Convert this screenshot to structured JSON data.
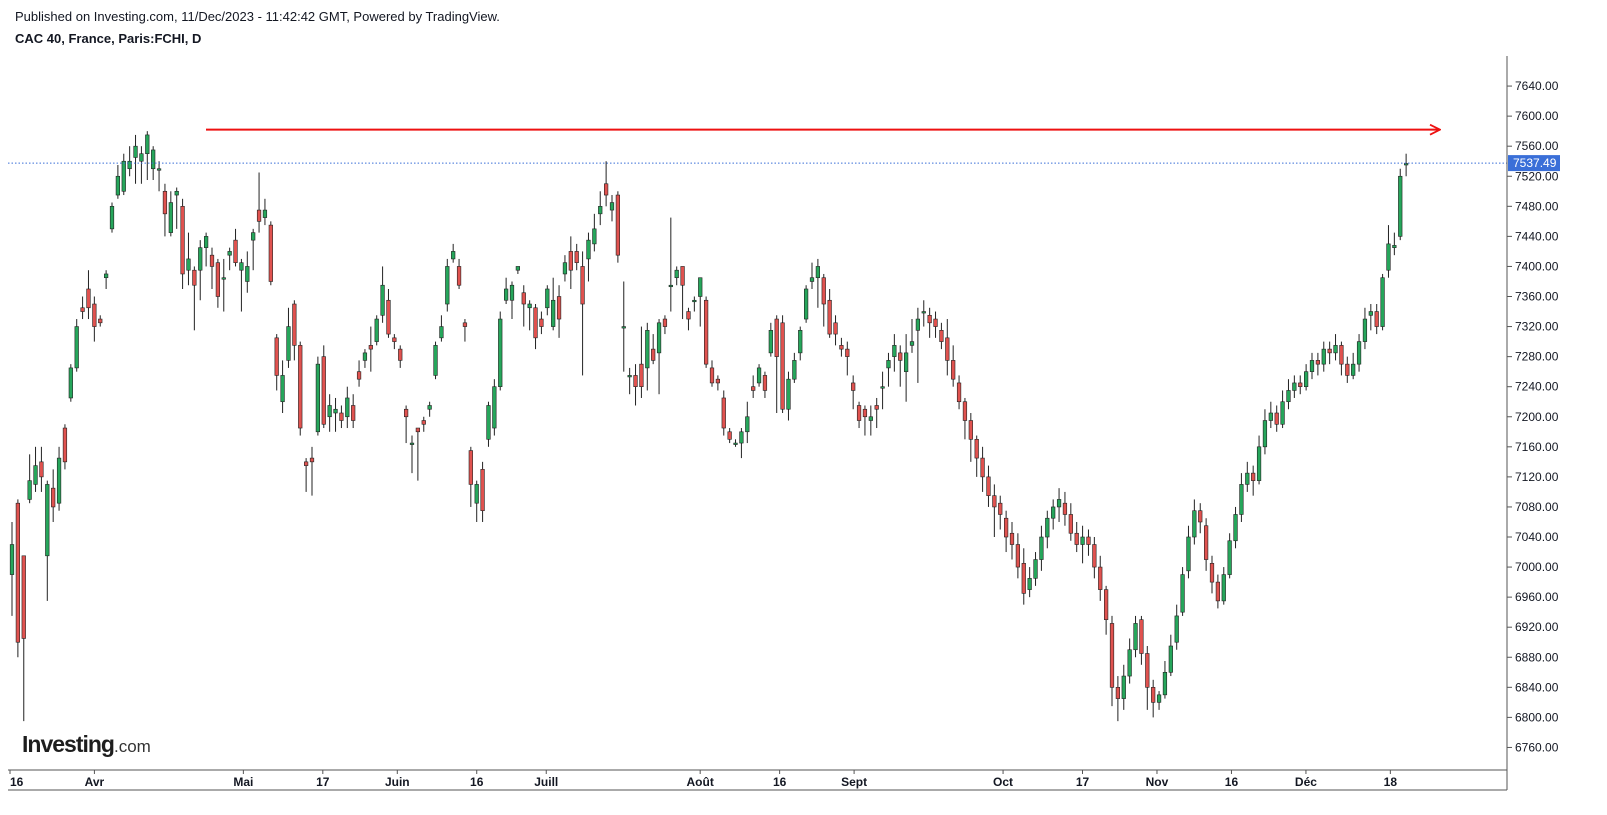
{
  "header": {
    "published": "Published on Investing.com, 11/Dec/2023 - 11:42:42 GMT, Powered by TradingView.",
    "symbol": "CAC 40, France, Paris:FCHI, D"
  },
  "logo": {
    "main": "Investing",
    "suffix": ".com"
  },
  "colors": {
    "up": "#26a65b",
    "down": "#e0524f",
    "wick": "#222222",
    "resistance": "#ee1111",
    "price_label": "#3a6fd8",
    "price_line": "#3a6fd8"
  },
  "chart_data": {
    "type": "candlestick",
    "ylim": [
      6730,
      7680
    ],
    "x_range_days": [
      0,
      288
    ],
    "yticks": [
      7640,
      7600,
      7560,
      7520,
      7480,
      7440,
      7400,
      7360,
      7320,
      7280,
      7240,
      7200,
      7160,
      7120,
      7080,
      7040,
      7000,
      6960,
      6920,
      6880,
      6840,
      6800,
      6760
    ],
    "ytick_labels": [
      "7640.00",
      "7600.00",
      "7560.00",
      "7520.00",
      "7480.00",
      "7440.00",
      "7400.00",
      "7360.00",
      "7320.00",
      "7280.00",
      "7240.00",
      "7200.00",
      "7160.00",
      "7120.00",
      "7080.00",
      "7040.00",
      "7000.00",
      "6960.00",
      "6920.00",
      "6880.00",
      "6840.00",
      "6800.00",
      "6760.00"
    ],
    "xticks": [
      {
        "day": 0,
        "label": "16"
      },
      {
        "day": 17,
        "label": "Avr"
      },
      {
        "day": 47,
        "label": "Mai"
      },
      {
        "day": 63,
        "label": "17"
      },
      {
        "day": 78,
        "label": "Juin"
      },
      {
        "day": 94,
        "label": "16"
      },
      {
        "day": 108,
        "label": "Juill"
      },
      {
        "day": 139,
        "label": "Août"
      },
      {
        "day": 155,
        "label": "16"
      },
      {
        "day": 170,
        "label": "Sept"
      },
      {
        "day": 200,
        "label": "Oct"
      },
      {
        "day": 216,
        "label": "17"
      },
      {
        "day": 231,
        "label": "Nov"
      },
      {
        "day": 246,
        "label": "16"
      },
      {
        "day": 261,
        "label": "Déc"
      },
      {
        "day": 278,
        "label": "18"
      }
    ],
    "last_price": 7537.49,
    "last_price_label": "7537.49",
    "resistance": {
      "value": 7582,
      "from_day": 36,
      "to_day": 275
    },
    "candles": [
      [
        6990,
        7030,
        6935,
        7060
      ],
      [
        7085,
        6900,
        6880,
        7090
      ],
      [
        7015,
        6905,
        6795,
        7015
      ],
      [
        7090,
        7115,
        7085,
        7150
      ],
      [
        7110,
        7135,
        7100,
        7160
      ],
      [
        7140,
        7120,
        7100,
        7160
      ],
      [
        7015,
        7110,
        6955,
        7115
      ],
      [
        7105,
        7080,
        7060,
        7130
      ],
      [
        7085,
        7145,
        7075,
        7160
      ],
      [
        7185,
        7140,
        7130,
        7190
      ],
      [
        7225,
        7265,
        7220,
        7270
      ],
      [
        7265,
        7320,
        7260,
        7330
      ],
      [
        7345,
        7340,
        7330,
        7360
      ],
      [
        7370,
        7345,
        7330,
        7395
      ],
      [
        7350,
        7320,
        7300,
        7360
      ],
      [
        7330,
        7325,
        7320,
        7335
      ],
      [
        7385,
        7390,
        7370,
        7395
      ],
      [
        7450,
        7480,
        7445,
        7485
      ],
      [
        7495,
        7520,
        7490,
        7535
      ],
      [
        7500,
        7540,
        7495,
        7550
      ],
      [
        7530,
        7540,
        7520,
        7560
      ],
      [
        7545,
        7560,
        7510,
        7575
      ],
      [
        7540,
        7550,
        7510,
        7560
      ],
      [
        7550,
        7575,
        7515,
        7580
      ],
      [
        7530,
        7555,
        7515,
        7560
      ],
      [
        7530,
        7530,
        7500,
        7540
      ],
      [
        7500,
        7470,
        7440,
        7510
      ],
      [
        7445,
        7485,
        7440,
        7500
      ],
      [
        7495,
        7500,
        7450,
        7505
      ],
      [
        7480,
        7390,
        7370,
        7490
      ],
      [
        7395,
        7410,
        7375,
        7445
      ],
      [
        7395,
        7375,
        7315,
        7400
      ],
      [
        7395,
        7425,
        7355,
        7435
      ],
      [
        7425,
        7440,
        7400,
        7445
      ],
      [
        7415,
        7400,
        7370,
        7425
      ],
      [
        7405,
        7360,
        7345,
        7410
      ],
      [
        7385,
        7385,
        7340,
        7410
      ],
      [
        7415,
        7420,
        7395,
        7425
      ],
      [
        7435,
        7405,
        7400,
        7450
      ],
      [
        7395,
        7405,
        7340,
        7410
      ],
      [
        7380,
        7400,
        7365,
        7420
      ],
      [
        7435,
        7445,
        7395,
        7450
      ],
      [
        7475,
        7460,
        7445,
        7525
      ],
      [
        7465,
        7475,
        7455,
        7490
      ],
      [
        7455,
        7380,
        7375,
        7460
      ],
      [
        7305,
        7255,
        7235,
        7310
      ],
      [
        7220,
        7255,
        7205,
        7275
      ],
      [
        7275,
        7320,
        7265,
        7345
      ],
      [
        7350,
        7295,
        7275,
        7355
      ],
      [
        7295,
        7185,
        7175,
        7300
      ],
      [
        7140,
        7135,
        7100,
        7145
      ],
      [
        7145,
        7140,
        7095,
        7160
      ],
      [
        7180,
        7270,
        7175,
        7280
      ],
      [
        7280,
        7190,
        7185,
        7295
      ],
      [
        7200,
        7215,
        7180,
        7230
      ],
      [
        7205,
        7210,
        7180,
        7225
      ],
      [
        7205,
        7195,
        7185,
        7215
      ],
      [
        7200,
        7225,
        7185,
        7240
      ],
      [
        7215,
        7195,
        7185,
        7230
      ],
      [
        7260,
        7250,
        7240,
        7275
      ],
      [
        7275,
        7285,
        7265,
        7290
      ],
      [
        7295,
        7290,
        7260,
        7320
      ],
      [
        7300,
        7330,
        7295,
        7335
      ],
      [
        7335,
        7375,
        7325,
        7400
      ],
      [
        7355,
        7310,
        7305,
        7370
      ],
      [
        7305,
        7300,
        7290,
        7310
      ],
      [
        7290,
        7275,
        7265,
        7295
      ],
      [
        7210,
        7200,
        7165,
        7215
      ],
      [
        7165,
        7165,
        7125,
        7175
      ],
      [
        7185,
        7180,
        7115,
        7185
      ],
      [
        7195,
        7190,
        7180,
        7200
      ],
      [
        7210,
        7215,
        7200,
        7220
      ],
      [
        7255,
        7295,
        7250,
        7300
      ],
      [
        7305,
        7320,
        7300,
        7335
      ],
      [
        7350,
        7400,
        7340,
        7410
      ],
      [
        7410,
        7420,
        7405,
        7430
      ],
      [
        7400,
        7375,
        7370,
        7410
      ],
      [
        7325,
        7320,
        7300,
        7330
      ],
      [
        7155,
        7110,
        7080,
        7160
      ],
      [
        7085,
        7110,
        7060,
        7115
      ],
      [
        7130,
        7075,
        7060,
        7140
      ],
      [
        7170,
        7215,
        7160,
        7220
      ],
      [
        7185,
        7240,
        7175,
        7250
      ],
      [
        7240,
        7330,
        7235,
        7340
      ],
      [
        7355,
        7370,
        7350,
        7385
      ],
      [
        7355,
        7375,
        7330,
        7380
      ],
      [
        7395,
        7400,
        7390,
        7400
      ],
      [
        7365,
        7350,
        7320,
        7375
      ],
      [
        7345,
        7350,
        7315,
        7355
      ],
      [
        7345,
        7305,
        7290,
        7350
      ],
      [
        7330,
        7320,
        7310,
        7340
      ],
      [
        7345,
        7370,
        7335,
        7375
      ],
      [
        7320,
        7355,
        7315,
        7385
      ],
      [
        7360,
        7330,
        7305,
        7375
      ],
      [
        7390,
        7405,
        7380,
        7415
      ],
      [
        7420,
        7395,
        7370,
        7440
      ],
      [
        7420,
        7405,
        7395,
        7430
      ],
      [
        7400,
        7350,
        7255,
        7420
      ],
      [
        7410,
        7435,
        7380,
        7445
      ],
      [
        7430,
        7450,
        7420,
        7470
      ],
      [
        7470,
        7480,
        7455,
        7500
      ],
      [
        7510,
        7495,
        7480,
        7540
      ],
      [
        7475,
        7485,
        7460,
        7495
      ],
      [
        7495,
        7415,
        7405,
        7500
      ],
      [
        7320,
        7320,
        7260,
        7380
      ],
      [
        7255,
        7255,
        7230,
        7265
      ],
      [
        7255,
        7240,
        7215,
        7270
      ],
      [
        7270,
        7240,
        7225,
        7320
      ],
      [
        7265,
        7315,
        7235,
        7325
      ],
      [
        7290,
        7275,
        7270,
        7310
      ],
      [
        7285,
        7325,
        7230,
        7330
      ],
      [
        7330,
        7320,
        7310,
        7335
      ],
      [
        7375,
        7375,
        7340,
        7465
      ],
      [
        7385,
        7395,
        7375,
        7400
      ],
      [
        7400,
        7375,
        7330,
        7400
      ],
      [
        7340,
        7330,
        7315,
        7345
      ],
      [
        7355,
        7355,
        7340,
        7360
      ],
      [
        7360,
        7385,
        7320,
        7385
      ],
      [
        7355,
        7270,
        7265,
        7360
      ],
      [
        7265,
        7245,
        7240,
        7275
      ],
      [
        7250,
        7245,
        7235,
        7255
      ],
      [
        7225,
        7185,
        7175,
        7235
      ],
      [
        7180,
        7170,
        7165,
        7185
      ],
      [
        7165,
        7165,
        7160,
        7170
      ],
      [
        7165,
        7180,
        7145,
        7185
      ],
      [
        7180,
        7200,
        7165,
        7220
      ],
      [
        7240,
        7235,
        7225,
        7255
      ],
      [
        7245,
        7265,
        7240,
        7270
      ],
      [
        7255,
        7235,
        7225,
        7260
      ],
      [
        7285,
        7315,
        7280,
        7325
      ],
      [
        7330,
        7280,
        7205,
        7335
      ],
      [
        7325,
        7210,
        7205,
        7335
      ],
      [
        7210,
        7250,
        7195,
        7260
      ],
      [
        7250,
        7275,
        7245,
        7285
      ],
      [
        7285,
        7315,
        7275,
        7320
      ],
      [
        7330,
        7370,
        7325,
        7375
      ],
      [
        7380,
        7385,
        7370,
        7405
      ],
      [
        7385,
        7400,
        7345,
        7410
      ],
      [
        7385,
        7350,
        7320,
        7390
      ],
      [
        7355,
        7310,
        7305,
        7370
      ],
      [
        7325,
        7310,
        7295,
        7335
      ],
      [
        7295,
        7290,
        7280,
        7305
      ],
      [
        7290,
        7280,
        7255,
        7300
      ],
      [
        7245,
        7235,
        7210,
        7255
      ],
      [
        7215,
        7195,
        7185,
        7220
      ],
      [
        7210,
        7200,
        7175,
        7215
      ],
      [
        7195,
        7200,
        7175,
        7215
      ],
      [
        7215,
        7210,
        7185,
        7225
      ],
      [
        7240,
        7240,
        7210,
        7260
      ],
      [
        7265,
        7275,
        7240,
        7285
      ],
      [
        7280,
        7295,
        7260,
        7310
      ],
      [
        7285,
        7275,
        7240,
        7295
      ],
      [
        7260,
        7285,
        7220,
        7310
      ],
      [
        7295,
        7300,
        7285,
        7330
      ],
      [
        7315,
        7330,
        7245,
        7345
      ],
      [
        7340,
        7340,
        7320,
        7355
      ],
      [
        7335,
        7325,
        7305,
        7345
      ],
      [
        7330,
        7320,
        7305,
        7340
      ],
      [
        7315,
        7300,
        7290,
        7325
      ],
      [
        7305,
        7275,
        7255,
        7330
      ],
      [
        7275,
        7250,
        7240,
        7295
      ],
      [
        7245,
        7220,
        7210,
        7255
      ],
      [
        7220,
        7195,
        7170,
        7225
      ],
      [
        7195,
        7170,
        7140,
        7205
      ],
      [
        7170,
        7145,
        7120,
        7175
      ],
      [
        7145,
        7120,
        7100,
        7160
      ],
      [
        7120,
        7095,
        7080,
        7135
      ],
      [
        7095,
        7080,
        7040,
        7110
      ],
      [
        7085,
        7070,
        7050,
        7095
      ],
      [
        7065,
        7040,
        7020,
        7075
      ],
      [
        7045,
        7030,
        7010,
        7060
      ],
      [
        7030,
        7000,
        6985,
        7045
      ],
      [
        7005,
        6965,
        6950,
        7025
      ],
      [
        6970,
        6985,
        6960,
        7000
      ],
      [
        6985,
        7010,
        6975,
        7020
      ],
      [
        7010,
        7040,
        6995,
        7055
      ],
      [
        7040,
        7065,
        7025,
        7075
      ],
      [
        7065,
        7080,
        7050,
        7090
      ],
      [
        7080,
        7090,
        7060,
        7105
      ],
      [
        7085,
        7070,
        7055,
        7100
      ],
      [
        7070,
        7045,
        7035,
        7085
      ],
      [
        7045,
        7030,
        7020,
        7060
      ],
      [
        7030,
        7040,
        7005,
        7055
      ],
      [
        7040,
        7030,
        7015,
        7050
      ],
      [
        7030,
        7000,
        6985,
        7040
      ],
      [
        7000,
        6970,
        6955,
        7015
      ],
      [
        6970,
        6930,
        6910,
        6975
      ],
      [
        6925,
        6840,
        6815,
        6935
      ],
      [
        6840,
        6825,
        6795,
        6855
      ],
      [
        6825,
        6855,
        6810,
        6870
      ],
      [
        6855,
        6890,
        6845,
        6905
      ],
      [
        6890,
        6925,
        6880,
        6935
      ],
      [
        6930,
        6885,
        6870,
        6935
      ],
      [
        6885,
        6840,
        6810,
        6895
      ],
      [
        6840,
        6820,
        6800,
        6850
      ],
      [
        6820,
        6830,
        6810,
        6835
      ],
      [
        6830,
        6860,
        6825,
        6875
      ],
      [
        6860,
        6895,
        6855,
        6910
      ],
      [
        6900,
        6935,
        6890,
        6950
      ],
      [
        6940,
        6990,
        6935,
        7000
      ],
      [
        6995,
        7040,
        6985,
        7055
      ],
      [
        7040,
        7075,
        7030,
        7090
      ],
      [
        7075,
        7060,
        7045,
        7085
      ],
      [
        7055,
        7010,
        6995,
        7065
      ],
      [
        7005,
        6980,
        6965,
        7015
      ],
      [
        6980,
        6955,
        6945,
        6990
      ],
      [
        6955,
        6990,
        6950,
        7000
      ],
      [
        6990,
        7035,
        6985,
        7045
      ],
      [
        7035,
        7070,
        7025,
        7080
      ],
      [
        7070,
        7110,
        7060,
        7125
      ],
      [
        7110,
        7125,
        7100,
        7140
      ],
      [
        7125,
        7115,
        7095,
        7135
      ],
      [
        7115,
        7160,
        7110,
        7175
      ],
      [
        7160,
        7195,
        7150,
        7210
      ],
      [
        7195,
        7205,
        7185,
        7220
      ],
      [
        7205,
        7190,
        7180,
        7215
      ],
      [
        7190,
        7220,
        7185,
        7235
      ],
      [
        7220,
        7235,
        7210,
        7250
      ],
      [
        7235,
        7245,
        7225,
        7255
      ],
      [
        7245,
        7240,
        7230,
        7255
      ],
      [
        7240,
        7260,
        7235,
        7270
      ],
      [
        7260,
        7275,
        7250,
        7285
      ],
      [
        7275,
        7270,
        7255,
        7285
      ],
      [
        7270,
        7290,
        7260,
        7300
      ],
      [
        7290,
        7285,
        7270,
        7300
      ],
      [
        7285,
        7295,
        7275,
        7310
      ],
      [
        7295,
        7270,
        7255,
        7300
      ],
      [
        7270,
        7255,
        7245,
        7280
      ],
      [
        7255,
        7270,
        7250,
        7285
      ],
      [
        7270,
        7300,
        7260,
        7310
      ],
      [
        7300,
        7330,
        7290,
        7345
      ],
      [
        7335,
        7340,
        7315,
        7350
      ],
      [
        7340,
        7320,
        7310,
        7350
      ],
      [
        7320,
        7385,
        7315,
        7390
      ],
      [
        7395,
        7430,
        7385,
        7455
      ],
      [
        7425,
        7428,
        7415,
        7445
      ],
      [
        7440,
        7520,
        7435,
        7530
      ],
      [
        7535,
        7537,
        7520,
        7550
      ]
    ]
  }
}
